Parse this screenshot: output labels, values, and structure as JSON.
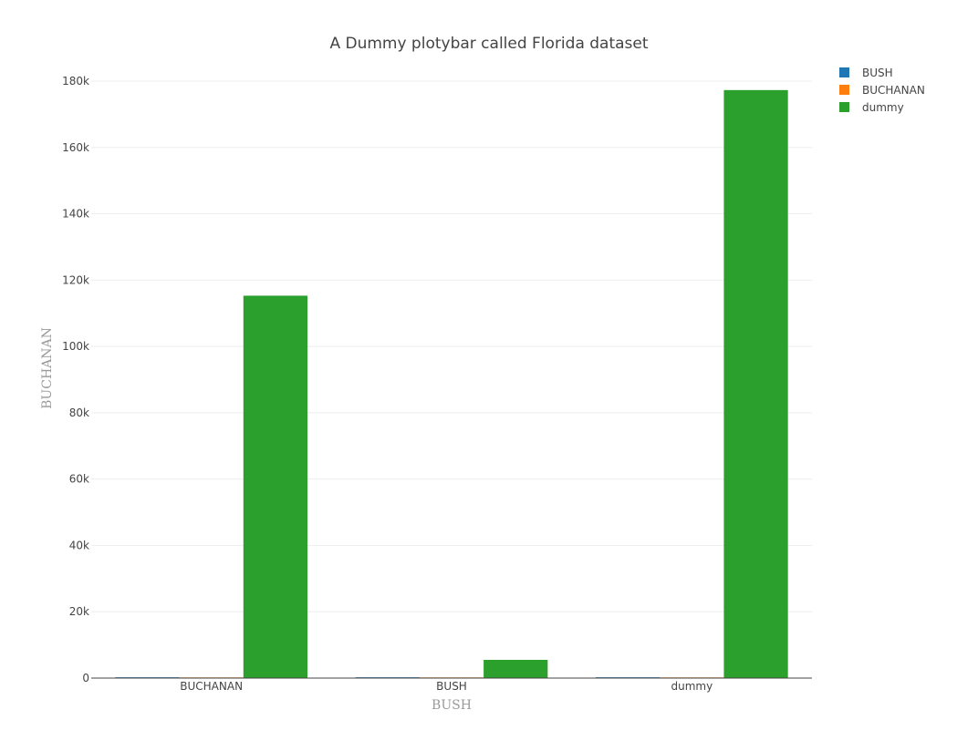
{
  "chart_data": {
    "type": "bar",
    "title": "A Dummy plotybar called Florida dataset",
    "xlabel": "BUSH",
    "ylabel": "BUCHANAN",
    "categories": [
      "BUCHANAN",
      "BUSH",
      "dummy"
    ],
    "series": [
      {
        "name": "BUSH",
        "color": "#1f77b4",
        "values": [
          250,
          250,
          250
        ]
      },
      {
        "name": "BUCHANAN",
        "color": "#ff7f0e",
        "values": [
          200,
          200,
          200
        ]
      },
      {
        "name": "dummy",
        "color": "#2ca02c",
        "values": [
          115300,
          5500,
          177300
        ]
      }
    ],
    "ylim": [
      0,
      180000
    ],
    "yticks": [
      0,
      20000,
      40000,
      60000,
      80000,
      100000,
      120000,
      140000,
      160000,
      180000
    ],
    "ytick_labels": [
      "0",
      "20k",
      "40k",
      "60k",
      "80k",
      "100k",
      "120k",
      "140k",
      "160k",
      "180k"
    ],
    "grid": true,
    "legend_position": "top-right"
  }
}
